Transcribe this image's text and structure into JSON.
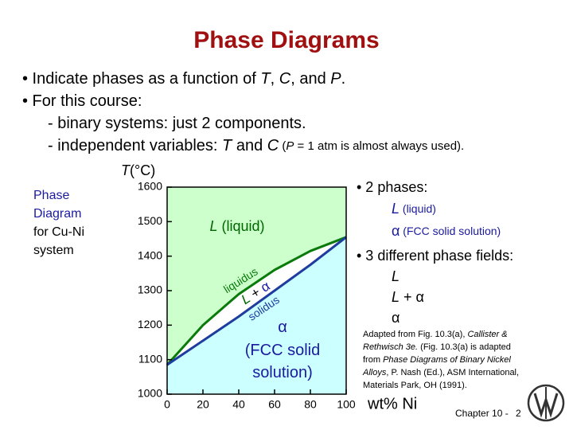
{
  "title": "Phase Diagrams",
  "bullets": [
    [
      "•  Indicate phases as a function of ",
      {
        "text": "T",
        "style": "italic"
      },
      ", ",
      {
        "text": "C",
        "style": "italic"
      },
      ", and ",
      {
        "text": "P",
        "style": "italic"
      },
      "."
    ],
    [
      "•  For this course:"
    ],
    [
      "- binary systems:  just 2 components."
    ],
    [
      "- independent variables:  ",
      {
        "text": "T",
        "style": "italic"
      },
      " and  ",
      {
        "text": "C",
        "style": "italic"
      },
      {
        "text": "  (",
        "style": "small"
      },
      {
        "text": "P",
        "style": "small-italic"
      },
      {
        "text": " = 1 atm is almost always used).",
        "style": "small"
      }
    ]
  ],
  "side_note": [
    [
      {
        "text": "Phase",
        "color": "#1a1aa0"
      }
    ],
    [
      {
        "text": "Diagram",
        "color": "#1a1aa0"
      }
    ],
    [
      "for Cu-Ni"
    ],
    [
      "system"
    ]
  ],
  "phases_panel": [
    [
      "• 2 phases:"
    ],
    [
      {
        "text": "L",
        "style": "italic",
        "color": "#1a1aa0"
      },
      {
        "text": " (liquid)",
        "style": "small",
        "color": "#1a1aa0"
      }
    ],
    [
      {
        "text": "α",
        "color": "#1a1aa0"
      },
      {
        "text": " (FCC solid solution)",
        "style": "small",
        "color": "#1a1aa0"
      }
    ],
    [
      "• 3 different phase fields:"
    ],
    [
      {
        "text": "L",
        "style": "italic"
      }
    ],
    [
      {
        "text": "L",
        "style": "italic"
      },
      " + α"
    ],
    [
      "α"
    ]
  ],
  "citation": [
    [
      "Adapted from Fig. 10.3(a), ",
      {
        "text": "Callister &",
        "style": "italic"
      }
    ],
    [
      {
        "text": "Rethwisch 3e.",
        "style": "italic"
      },
      " (Fig. 10.3(a) is adapted"
    ],
    [
      "from ",
      {
        "text": "Phase Diagrams of Binary Nickel",
        "style": "italic"
      }
    ],
    [
      {
        "text": "Alloys",
        "style": "italic"
      },
      ", P. Nash (Ed.), ASM International,"
    ],
    [
      "Materials Park, OH (1991)."
    ]
  ],
  "footer": {
    "chapter": "Chapter 10 -",
    "page": "2"
  },
  "chart_data": {
    "type": "phase",
    "y_label": [
      {
        "text": "T",
        "style": "italic"
      },
      "(°C)"
    ],
    "x_label": "wt% Ni",
    "xlim": [
      0,
      100
    ],
    "ylim": [
      1000,
      1600
    ],
    "xticks": [
      0,
      20,
      40,
      60,
      80,
      100
    ],
    "yticks": [
      1000,
      1100,
      1200,
      1300,
      1400,
      1500,
      1600
    ],
    "x": [
      0,
      20,
      40,
      60,
      80,
      100
    ],
    "series": [
      {
        "name": "liquidus",
        "color": "#0a7a0a",
        "values": [
          1085,
          1200,
          1290,
          1360,
          1415,
          1455
        ]
      },
      {
        "name": "solidus",
        "color": "#1f3d9e",
        "values": [
          1085,
          1155,
          1225,
          1300,
          1375,
          1455
        ]
      }
    ],
    "region_colors": {
      "liquid": "#ccffcc",
      "solid": "#ccffff"
    },
    "annotations": [
      [
        {
          "text": "L",
          "style": "italic",
          "color": "#006600"
        },
        {
          "text": " (liquid)",
          "color": "#006600"
        }
      ],
      [
        {
          "text": "L",
          "style": "italic",
          "color": "#006600"
        },
        " + ",
        {
          "text": "α",
          "color": "#1a1aa0"
        }
      ],
      [
        {
          "text": "α",
          "color": "#1a1aa0"
        }
      ],
      [
        {
          "text": "(FCC solid",
          "color": "#1a1aa0"
        }
      ],
      [
        {
          "text": "solution)",
          "color": "#1a1aa0"
        }
      ]
    ]
  }
}
